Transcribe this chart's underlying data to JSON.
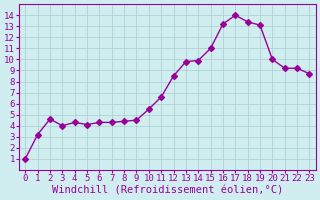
{
  "x": [
    0,
    1,
    2,
    3,
    4,
    5,
    6,
    7,
    8,
    9,
    10,
    11,
    12,
    13,
    14,
    15,
    16,
    17,
    18,
    19,
    20,
    21,
    22,
    23
  ],
  "y": [
    1.0,
    3.2,
    4.6,
    4.0,
    4.3,
    4.1,
    4.3,
    4.3,
    4.4,
    4.5,
    5.5,
    6.6,
    8.5,
    9.8,
    9.9,
    11.0,
    13.2,
    14.0,
    13.4,
    13.1,
    10.0,
    9.2,
    9.2,
    8.7
  ],
  "line_color": "#990099",
  "marker": "D",
  "marker_size": 3,
  "bg_color": "#d0eef0",
  "grid_color": "#aacccc",
  "xlabel": "Windchill (Refroidissement éolien,°C)",
  "ylabel": "",
  "xlim": [
    -0.5,
    23.5
  ],
  "ylim": [
    0,
    15
  ],
  "xticks": [
    0,
    1,
    2,
    3,
    4,
    5,
    6,
    7,
    8,
    9,
    10,
    11,
    12,
    13,
    14,
    15,
    16,
    17,
    18,
    19,
    20,
    21,
    22,
    23
  ],
  "yticks": [
    1,
    2,
    3,
    4,
    5,
    6,
    7,
    8,
    9,
    10,
    11,
    12,
    13,
    14
  ],
  "tick_label_color": "#990099",
  "tick_label_size": 6.5,
  "xlabel_size": 7.5,
  "xlabel_color": "#990099",
  "spine_color": "#990099"
}
